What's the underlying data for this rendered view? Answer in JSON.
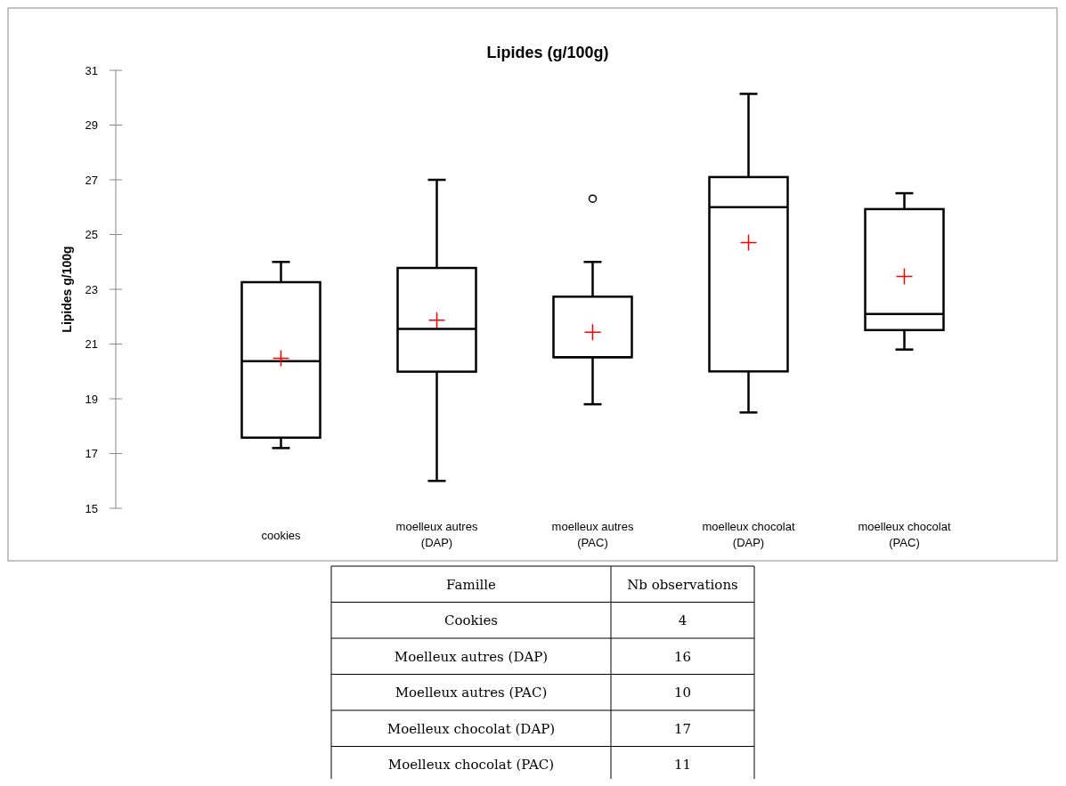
{
  "chart_data": [
    {
      "type": "box",
      "title": "Lipides (g/100g)",
      "ylabel": "Lipides g/100g",
      "categories": [
        "cookies",
        "moelleux autres (DAP)",
        "moelleux autres (PAC)",
        "moelleux chocolat (DAP)",
        "moelleux chocolat (PAC)"
      ],
      "color": "#000000",
      "ylim": [
        15,
        31
      ],
      "yticks": [
        15,
        17,
        19,
        21,
        23,
        25,
        27,
        29,
        31
      ],
      "grid": false,
      "boxes": [
        {
          "low": 17.2,
          "q1": 17.58,
          "median": 20.37,
          "q3": 23.26,
          "high": 24.0,
          "mean": 20.48
        },
        {
          "low": 16.0,
          "q1": 19.99,
          "median": 21.55,
          "q3": 23.78,
          "high": 27.0,
          "mean": 21.87
        },
        {
          "low": 18.8,
          "q1": 20.52,
          "median": 20.52,
          "q3": 22.73,
          "high": 24.0,
          "mean": 21.43,
          "outliers": [
            26.31
          ]
        },
        {
          "low": 18.5,
          "q1": 20.0,
          "median": 26.0,
          "q3": 27.1,
          "high": 30.14,
          "mean": 24.71
        },
        {
          "low": 20.8,
          "q1": 21.51,
          "median": 22.1,
          "q3": 25.93,
          "high": 26.51,
          "mean": 23.47
        }
      ]
    },
    {
      "type": "other",
      "xlabel": "Famille",
      "ylabel": "Nb observations",
      "categories": [
        "Cookies",
        "Moelleux autres (DAP)",
        "Moelleux autres (PAC)",
        "Moelleux chocolat (DAP)",
        "Moelleux chocolat (PAC)"
      ],
      "values": [
        4,
        16,
        10,
        17,
        11
      ],
      "data_labels": true
    }
  ]
}
